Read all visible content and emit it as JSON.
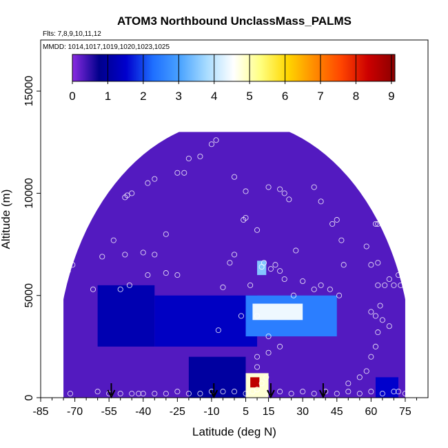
{
  "chart_data": {
    "type": "heatmap",
    "title": "ATOM3 Northbound UnclassMass_PALMS",
    "subtitle_flights": "Flts: 7,8,9,10,11,12",
    "subtitle_dates": "MMDD: 1014,1017,1019,1020,1023,1025",
    "xlabel": "Latitude (deg N)",
    "ylabel": "Altitude (m)",
    "xlim": [
      -85,
      85
    ],
    "ylim": [
      0,
      17500
    ],
    "x_ticks": [
      -85,
      -70,
      -55,
      -40,
      -25,
      -10,
      5,
      15,
      30,
      45,
      60,
      75
    ],
    "y_ticks": [
      0,
      5000,
      10000,
      15000
    ],
    "colorbar": {
      "ticks": [
        0,
        1,
        2,
        3,
        4,
        5,
        6,
        7,
        8,
        9
      ],
      "range": [
        0,
        9.1
      ],
      "colors": [
        "#8a2be2",
        "#00008b",
        "#0000cd",
        "#1e6fff",
        "#4aa3ff",
        "#a8dcff",
        "#ffffff",
        "#ffff80",
        "#ffd700",
        "#ff8c00",
        "#ff4500",
        "#cc0000",
        "#8b0000"
      ]
    },
    "legend": "top colorbar",
    "grid": false,
    "arrows_lat": [
      -54,
      -9,
      16,
      39
    ],
    "colored_regions": [
      {
        "x": [
          -75,
          75
        ],
        "y": [
          0,
          13000
        ],
        "value": 0.3
      },
      {
        "x": [
          -60,
          -35
        ],
        "y": [
          2500,
          5500
        ],
        "value": 1.2
      },
      {
        "x": [
          -35,
          10
        ],
        "y": [
          2500,
          5000
        ],
        "value": 1.4
      },
      {
        "x": [
          -20,
          5
        ],
        "y": [
          0,
          2000
        ],
        "value": 1.0
      },
      {
        "x": [
          5,
          45
        ],
        "y": [
          3000,
          5000
        ],
        "value": 2.5
      },
      {
        "x": [
          8,
          30
        ],
        "y": [
          3800,
          4600
        ],
        "value": 4.4
      },
      {
        "x": [
          5,
          15
        ],
        "y": [
          0,
          1200
        ],
        "value": 4.8
      },
      {
        "x": [
          7,
          11
        ],
        "y": [
          500,
          1000
        ],
        "value": 8.5
      },
      {
        "x": [
          10,
          14
        ],
        "y": [
          6000,
          6700
        ],
        "value": 3.5
      },
      {
        "x": [
          62,
          72
        ],
        "y": [
          0,
          1000
        ],
        "value": 1.5
      }
    ],
    "points": [
      [
        -77,
        10200
      ],
      [
        -80,
        7800
      ],
      [
        -75,
        6600
      ],
      [
        -73,
        6200
      ],
      [
        -71,
        6500
      ],
      [
        -76,
        5200
      ],
      [
        -78,
        300
      ],
      [
        -72,
        200
      ],
      [
        -62,
        5300
      ],
      [
        -58,
        6900
      ],
      [
        -53,
        7700
      ],
      [
        -48,
        7000
      ],
      [
        -46,
        5500
      ],
      [
        -50,
        5300
      ],
      [
        -40,
        7100
      ],
      [
        -35,
        7000
      ],
      [
        -38,
        6000
      ],
      [
        -30,
        6100
      ],
      [
        -25,
        6000
      ],
      [
        -30,
        8000
      ],
      [
        -60,
        11700
      ],
      [
        -57,
        11700
      ],
      [
        -55,
        10500
      ],
      [
        -48,
        9800
      ],
      [
        -47,
        9900
      ],
      [
        -45,
        10000
      ],
      [
        -38,
        10500
      ],
      [
        -35,
        10700
      ],
      [
        -25,
        11000
      ],
      [
        -22,
        11000
      ],
      [
        -20,
        11700
      ],
      [
        -15,
        11800
      ],
      [
        -10,
        12400
      ],
      [
        -8,
        12600
      ],
      [
        -5,
        13300
      ],
      [
        0,
        10800
      ],
      [
        5,
        10100
      ],
      [
        10,
        8200
      ],
      [
        5,
        8800
      ],
      [
        4,
        8700
      ],
      [
        0,
        7000
      ],
      [
        -2,
        6600
      ],
      [
        15,
        10300
      ],
      [
        20,
        10200
      ],
      [
        22,
        10000
      ],
      [
        24,
        9700
      ],
      [
        35,
        10300
      ],
      [
        38,
        9600
      ],
      [
        43,
        8500
      ],
      [
        45,
        8700
      ],
      [
        47,
        7700
      ],
      [
        48,
        6500
      ],
      [
        53,
        12000
      ],
      [
        55,
        11800
      ],
      [
        55,
        10300
      ],
      [
        58,
        9900
      ],
      [
        62,
        8500
      ],
      [
        63,
        8500
      ],
      [
        58,
        7400
      ],
      [
        60,
        6500
      ],
      [
        63,
        6600
      ],
      [
        63,
        5500
      ],
      [
        66,
        5500
      ],
      [
        68,
        5800
      ],
      [
        70,
        5500
      ],
      [
        72,
        6000
      ],
      [
        73,
        5500
      ],
      [
        75,
        5700
      ],
      [
        77,
        8800
      ],
      [
        78,
        6300
      ],
      [
        79,
        5100
      ],
      [
        64,
        4500
      ],
      [
        60,
        4200
      ],
      [
        62,
        4000
      ],
      [
        65,
        3800
      ],
      [
        68,
        3500
      ],
      [
        63,
        3200
      ],
      [
        62,
        2500
      ],
      [
        60,
        2000
      ],
      [
        58,
        1300
      ],
      [
        55,
        1000
      ],
      [
        50,
        700
      ],
      [
        46,
        5000
      ],
      [
        42,
        5300
      ],
      [
        38,
        5500
      ],
      [
        35,
        5300
      ],
      [
        30,
        5700
      ],
      [
        27,
        7200
      ],
      [
        26,
        5000
      ],
      [
        22,
        5800
      ],
      [
        20,
        6200
      ],
      [
        18,
        6500
      ],
      [
        16,
        6300
      ],
      [
        13,
        6600
      ],
      [
        12,
        6400
      ],
      [
        7,
        5500
      ],
      [
        -5,
        5400
      ],
      [
        -7,
        3300
      ],
      [
        3,
        4000
      ],
      [
        10,
        4000
      ],
      [
        15,
        3000
      ],
      [
        20,
        2500
      ],
      [
        15,
        2200
      ],
      [
        10,
        2000
      ],
      [
        10,
        1500
      ],
      [
        14,
        1000
      ],
      [
        12,
        700
      ],
      [
        10,
        400
      ],
      [
        8,
        300
      ],
      [
        5,
        200
      ],
      [
        0,
        300
      ],
      [
        -5,
        300
      ],
      [
        -10,
        300
      ],
      [
        -15,
        200
      ],
      [
        -20,
        200
      ],
      [
        -25,
        300
      ],
      [
        -30,
        200
      ],
      [
        -35,
        200
      ],
      [
        -40,
        200
      ],
      [
        -45,
        200
      ],
      [
        -50,
        200
      ],
      [
        -55,
        200
      ],
      [
        -60,
        300
      ],
      [
        15,
        100
      ],
      [
        20,
        300
      ],
      [
        25,
        200
      ],
      [
        30,
        300
      ],
      [
        35,
        200
      ],
      [
        40,
        300
      ],
      [
        45,
        200
      ],
      [
        50,
        300
      ],
      [
        55,
        200
      ],
      [
        60,
        300
      ],
      [
        65,
        200
      ],
      [
        70,
        300
      ],
      [
        75,
        200
      ],
      [
        72,
        300
      ],
      [
        -42,
        200
      ]
    ]
  },
  "colorbar_labels": [
    "0",
    "1",
    "2",
    "3",
    "4",
    "5",
    "6",
    "7",
    "8",
    "9"
  ],
  "x_tick_labels": [
    "-85",
    "-70",
    "-55",
    "-40",
    "-25",
    "-10",
    "5",
    "15",
    "30",
    "45",
    "60",
    "75"
  ],
  "y_tick_labels": [
    "0",
    "5000",
    "10000",
    "15000"
  ]
}
